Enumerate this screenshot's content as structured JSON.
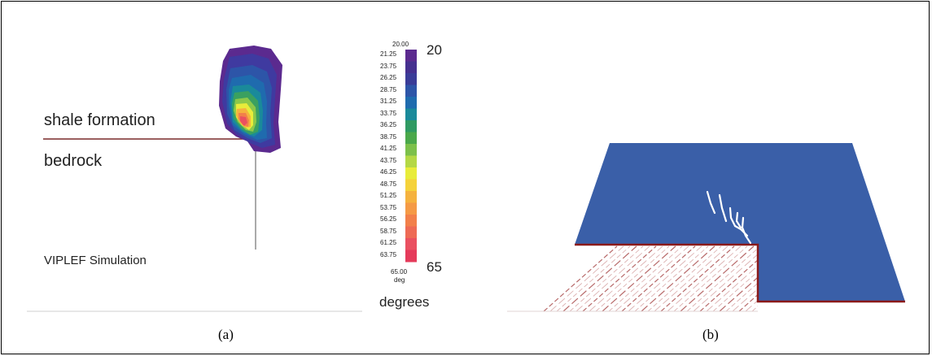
{
  "panel_a": {
    "label_shale": "shale formation",
    "label_bedrock": "bedrock",
    "label_sim": "VIPLEF Simulation",
    "caption": "(a)"
  },
  "colorbar": {
    "top_value": "20.00",
    "bottom_value": "65.00",
    "unit_small": "deg",
    "ticks": [
      "21.25",
      "23.75",
      "26.25",
      "28.75",
      "31.25",
      "33.75",
      "36.25",
      "38.75",
      "41.25",
      "43.75",
      "46.25",
      "48.75",
      "51.25",
      "53.75",
      "56.25",
      "58.75",
      "61.25",
      "63.75"
    ],
    "colors": [
      "#5b2a8f",
      "#45308f",
      "#3a3c98",
      "#2d55a8",
      "#1f6bae",
      "#1a8a9a",
      "#2f9a62",
      "#4aa84a",
      "#7cc04a",
      "#b4d845",
      "#e8ec3a",
      "#f5d23a",
      "#f5b23e",
      "#f59a45",
      "#f2804a",
      "#ee6a55",
      "#ea5060",
      "#e53a5a"
    ],
    "big_top": "20",
    "big_bottom": "65",
    "unit_big": "degrees"
  },
  "panel_b": {
    "caption": "(b)",
    "block_color": "#3a5fa8",
    "boundary_color": "#8a1a1a"
  }
}
